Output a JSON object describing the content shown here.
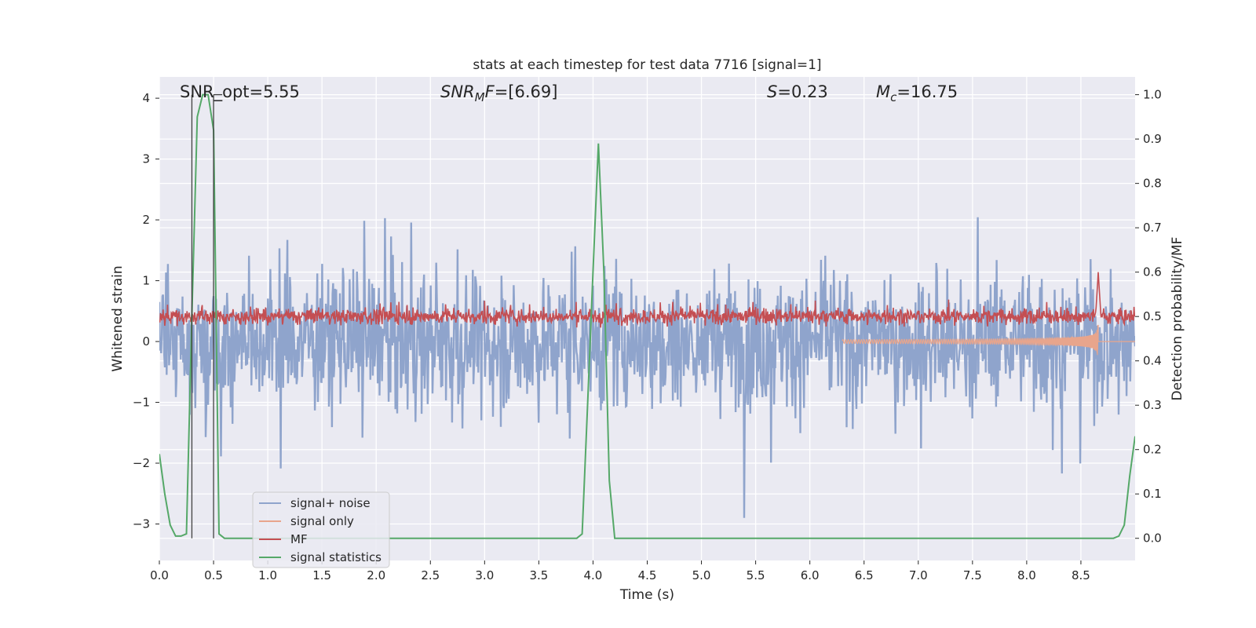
{
  "chart_data": {
    "type": "line",
    "title": "stats at each timestep for test data 7716 [signal=1]",
    "xlabel": "Time (s)",
    "ylabel_left": "Whitened strain",
    "ylabel_right": "Detection probability/MF",
    "xlim": [
      0.0,
      9.0
    ],
    "ylim_left": [
      -3.6,
      4.35
    ],
    "ylim_right": [
      -0.05,
      1.04
    ],
    "x_ticks": [
      "0.0",
      "0.5",
      "1.0",
      "1.5",
      "2.0",
      "2.5",
      "3.0",
      "3.5",
      "4.0",
      "4.5",
      "5.0",
      "5.5",
      "6.0",
      "6.5",
      "7.0",
      "7.5",
      "8.0",
      "8.5"
    ],
    "y_ticks_left": [
      "−3",
      "−2",
      "−1",
      "0",
      "1",
      "2",
      "3",
      "4"
    ],
    "y_ticks_right": [
      "0.0",
      "0.1",
      "0.2",
      "0.3",
      "0.4",
      "0.5",
      "0.6",
      "0.7",
      "0.8",
      "0.9",
      "1.0"
    ],
    "grid": true,
    "legend_placement": "lower-left",
    "annotations": [
      {
        "key": "snr_opt",
        "text": "SNR_opt=5.55"
      },
      {
        "key": "snr_mf",
        "base": "SNR",
        "sub": "M",
        "rest": "F=[6.69]"
      },
      {
        "key": "s",
        "base": "S",
        "rest": "=0.23"
      },
      {
        "key": "mc",
        "base": "M",
        "sub": "c",
        "rest": "=16.75"
      }
    ],
    "series": [
      {
        "name": "signal+ noise",
        "axis": "left",
        "color": "#8fa4cc",
        "description": "whitened noisy strain, approx range -2.9 to 3.2"
      },
      {
        "name": "signal only",
        "axis": "left",
        "color": "#e8a58c",
        "description": "chirp from ~6.5 s growing to ±1.0 at ~8.65 s"
      },
      {
        "name": "MF",
        "axis": "right",
        "color": "#c44e52",
        "description": "matched filter output ~0.5 with spike to 0.6 at ~8.65 s"
      },
      {
        "name": "signal statistics",
        "axis": "right",
        "color": "#55a868",
        "x": [
          0.0,
          0.05,
          0.1,
          0.15,
          0.2,
          0.25,
          0.3,
          0.35,
          0.4,
          0.45,
          0.5,
          0.55,
          0.6,
          0.65,
          0.7,
          1.0,
          2.0,
          3.0,
          3.85,
          3.9,
          3.95,
          4.0,
          4.05,
          4.1,
          4.15,
          4.2,
          4.25,
          5.0,
          6.0,
          7.0,
          8.0,
          8.8,
          8.85,
          8.9,
          8.95,
          9.0
        ],
        "y": [
          0.19,
          0.1,
          0.03,
          0.005,
          0.005,
          0.01,
          0.5,
          0.95,
          1.0,
          1.0,
          0.92,
          0.01,
          0.0,
          0.0,
          0.0,
          0.0,
          0.0,
          0.0,
          0.0,
          0.01,
          0.3,
          0.6,
          0.89,
          0.6,
          0.13,
          0.0,
          0.0,
          0.0,
          0.0,
          0.0,
          0.0,
          0.0,
          0.005,
          0.03,
          0.14,
          0.23
        ]
      }
    ],
    "vertical_markers_x": [
      0.3,
      0.5
    ]
  },
  "legend": {
    "items": [
      {
        "label": "signal+ noise",
        "color": "#8fa4cc"
      },
      {
        "label": "signal only",
        "color": "#e8a58c"
      },
      {
        "label": "MF",
        "color": "#c44e52"
      },
      {
        "label": "signal statistics",
        "color": "#55a868"
      }
    ]
  },
  "colors": {
    "plot_background": "#eaeaf2",
    "grid": "#ffffff",
    "text": "#262626"
  }
}
